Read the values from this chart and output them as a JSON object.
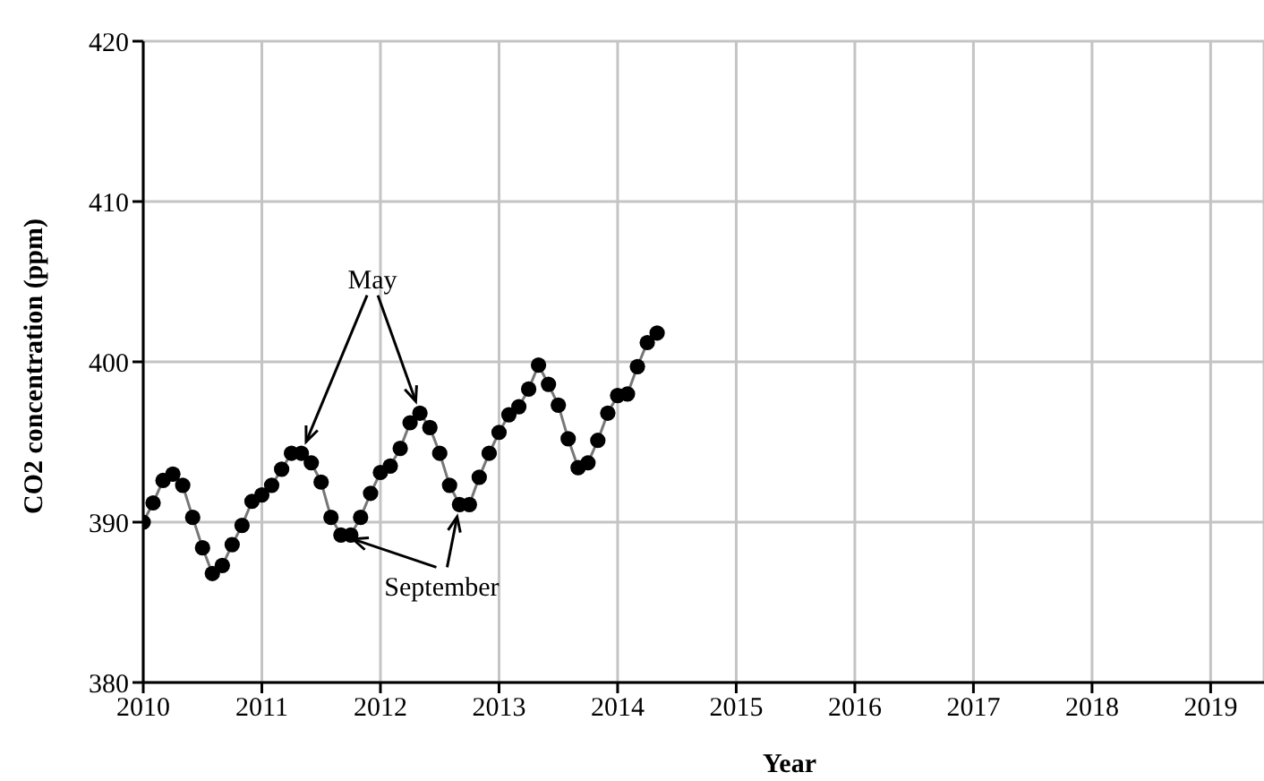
{
  "chart_data": {
    "type": "line",
    "xlabel": "Year",
    "ylabel": "CO2 concentration (ppm)",
    "x": [
      2010.0,
      2010.083,
      2010.167,
      2010.25,
      2010.333,
      2010.417,
      2010.5,
      2010.583,
      2010.667,
      2010.75,
      2010.833,
      2010.917,
      2011.0,
      2011.083,
      2011.167,
      2011.25,
      2011.333,
      2011.417,
      2011.5,
      2011.583,
      2011.667,
      2011.75,
      2011.833,
      2011.917,
      2012.0,
      2012.083,
      2012.167,
      2012.25,
      2012.333,
      2012.417,
      2012.5,
      2012.583,
      2012.667,
      2012.75,
      2012.833,
      2012.917,
      2013.0,
      2013.083,
      2013.167,
      2013.25,
      2013.333,
      2013.417,
      2013.5,
      2013.583,
      2013.667,
      2013.75,
      2013.833,
      2013.917,
      2014.0,
      2014.083,
      2014.167,
      2014.25,
      2014.333
    ],
    "series": [
      {
        "color": "#000000",
        "values": [
          390.0,
          391.2,
          392.6,
          393.0,
          392.3,
          390.3,
          388.4,
          386.8,
          387.3,
          388.6,
          389.8,
          391.3,
          391.7,
          392.3,
          393.3,
          394.3,
          394.3,
          393.7,
          392.5,
          390.3,
          389.2,
          389.2,
          390.3,
          391.8,
          393.1,
          393.5,
          394.6,
          396.2,
          396.8,
          395.9,
          394.3,
          392.3,
          391.1,
          391.1,
          392.8,
          394.3,
          395.6,
          396.7,
          397.2,
          398.3,
          399.8,
          398.6,
          397.3,
          395.2,
          393.4,
          393.7,
          395.1,
          396.8,
          397.9,
          398.0,
          399.7,
          401.2,
          401.8
        ]
      }
    ],
    "xlim": [
      2010,
      2019.45
    ],
    "xticks": [
      2010,
      2011,
      2012,
      2013,
      2014,
      2015,
      2016,
      2017,
      2018,
      2019
    ],
    "ylim": [
      380,
      420
    ],
    "yticks": [
      380,
      390,
      400,
      410,
      420
    ],
    "grid": true,
    "marker": "circle",
    "line_style": "solid",
    "annotations": [
      {
        "text": "May",
        "x": 2011.333,
        "y": 394.3
      },
      {
        "text": "September",
        "x": 2011.667,
        "y": 389.2
      }
    ]
  }
}
